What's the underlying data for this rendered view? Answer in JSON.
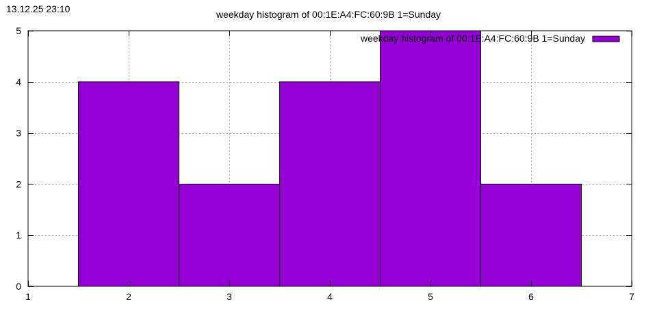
{
  "timestamp": "13.12.25 23:10",
  "chart_data": {
    "type": "bar",
    "title": "weekday histogram of 00:1E:A4:FC:60:9B 1=Sunday",
    "xlabel": "",
    "ylabel": "",
    "xlim": [
      1,
      7
    ],
    "ylim": [
      0,
      5
    ],
    "x_ticks": [
      "1",
      "2",
      "3",
      "4",
      "5",
      "6",
      "7"
    ],
    "y_ticks": [
      "0",
      "1",
      "2",
      "3",
      "4",
      "5"
    ],
    "categories": [
      "2",
      "3",
      "4",
      "5",
      "6"
    ],
    "x": [
      2,
      3,
      4,
      5,
      6
    ],
    "bar_width": 1,
    "values": [
      4,
      2,
      4,
      5,
      2
    ],
    "series": [
      {
        "name": "weekday histogram of 00:1E:A4:FC:60:9B 1=Sunday",
        "color": "#9400d3",
        "values": [
          4,
          2,
          4,
          5,
          2
        ]
      }
    ],
    "grid": true,
    "legend": "top-right"
  }
}
